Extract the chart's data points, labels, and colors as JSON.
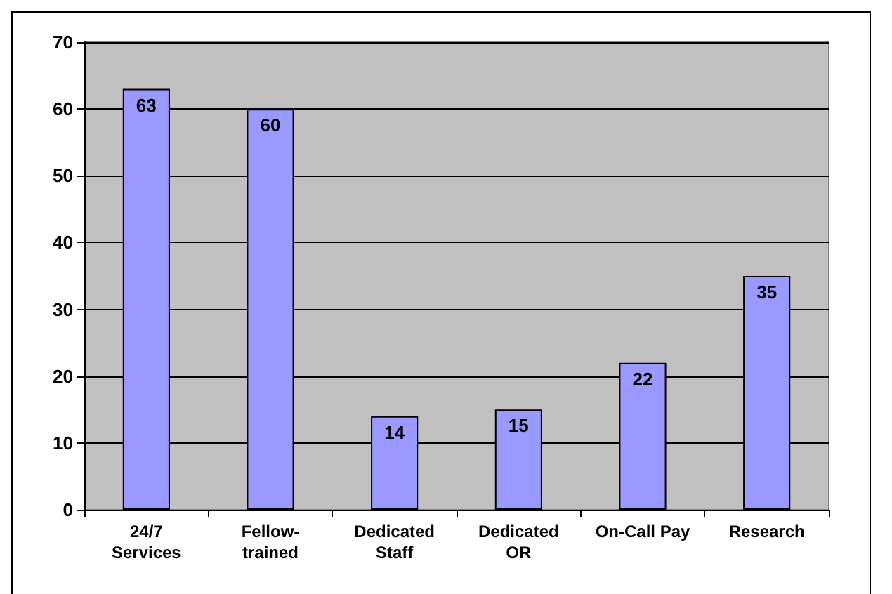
{
  "chart_data": {
    "type": "bar",
    "categories": [
      "24/7\nServices",
      "Fellow-\ntrained",
      "Dedicated\nStaff",
      "Dedicated\nOR",
      "On-Call Pay",
      "Research"
    ],
    "values": [
      63,
      60,
      14,
      15,
      22,
      35
    ],
    "color": "#9999ff",
    "data_labels": true,
    "ylim": [
      0,
      70
    ],
    "yticks": [
      0,
      10,
      20,
      30,
      40,
      50,
      60,
      70
    ],
    "grid": "y"
  }
}
